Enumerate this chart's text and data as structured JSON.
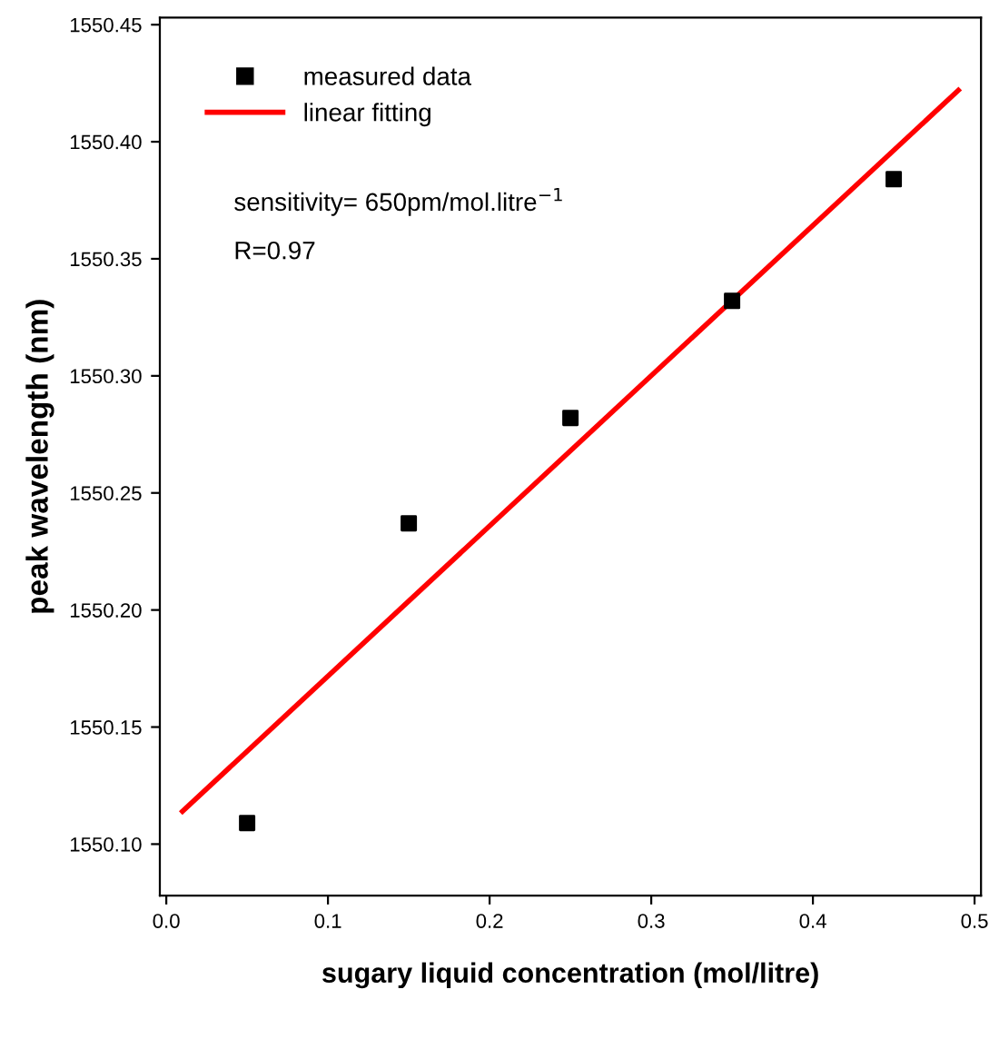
{
  "chart_data": {
    "type": "scatter",
    "xlabel": "sugary liquid concentration (mol/litre)",
    "ylabel": "peak wavelength (nm)",
    "annotations": [
      "sensitivity= 650pm/mol.litre$^{−1}$",
      "R=0.97"
    ],
    "series": [
      {
        "name": "measured data",
        "color": "#000000",
        "marker": "square",
        "x": [
          0.05,
          0.15,
          0.25,
          0.35,
          0.45
        ],
        "values": [
          1550.109,
          1550.237,
          1550.282,
          1550.332,
          1550.384
        ]
      },
      {
        "name": "linear fitting",
        "type": "line",
        "color": "#ff0000",
        "marker": "none",
        "line_style": "solid",
        "x": [
          0.01,
          0.49
        ],
        "values": [
          1550.114,
          1550.422
        ]
      }
    ],
    "xlim": [
      -0.004,
      0.504
    ],
    "ylim": [
      1550.078,
      1550.453
    ],
    "xticks": [
      {
        "value": 0,
        "label": "0.0"
      },
      0.1,
      0.2,
      0.3,
      0.4,
      0.5
    ],
    "yticks": [
      {
        "value": 1550.1,
        "label": "1550.10"
      },
      1550.15,
      {
        "value": 1550.2,
        "label": "1550.20"
      },
      1550.25,
      {
        "value": 1550.3,
        "label": "1550.30"
      },
      1550.35,
      {
        "value": 1550.4,
        "label": "1550.40"
      },
      1550.45
    ],
    "grid": false,
    "legend": "top left"
  }
}
